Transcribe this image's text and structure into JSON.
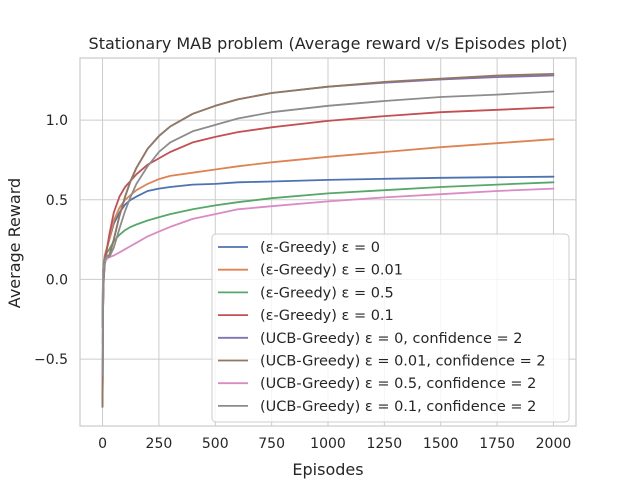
{
  "chart_data": {
    "type": "line",
    "title": "Stationary MAB problem (Average reward v/s Episodes plot)",
    "xlabel": "Episodes",
    "ylabel": "Average Reward",
    "xlim": [
      -100,
      2100
    ],
    "ylim": [
      -0.92,
      1.39
    ],
    "xticks": [
      0,
      250,
      500,
      750,
      1000,
      1250,
      1500,
      1750,
      2000
    ],
    "xtick_labels": [
      "0",
      "250",
      "500",
      "750",
      "1000",
      "1250",
      "1500",
      "1750",
      "2000"
    ],
    "yticks": [
      -0.5,
      0.0,
      0.5,
      1.0
    ],
    "ytick_labels": [
      "−0.5",
      "0.0",
      "0.5",
      "1.0"
    ],
    "grid": true,
    "legend_position": "lower-right",
    "x": [
      0,
      1,
      2,
      5,
      10,
      20,
      30,
      50,
      75,
      100,
      125,
      150,
      200,
      250,
      300,
      400,
      500,
      600,
      750,
      1000,
      1250,
      1500,
      1750,
      2000
    ],
    "series": [
      {
        "name": "(ε-Greedy) ε = 0",
        "color": "#4c72b0",
        "values": [
          -0.3,
          -0.1,
          0.05,
          0.1,
          0.15,
          0.2,
          0.25,
          0.35,
          0.42,
          0.47,
          0.5,
          0.52,
          0.555,
          0.57,
          0.58,
          0.595,
          0.6,
          0.61,
          0.615,
          0.625,
          0.632,
          0.638,
          0.642,
          0.645
        ]
      },
      {
        "name": "(ε-Greedy) ε = 0.01",
        "color": "#dd8452",
        "values": [
          -0.3,
          -0.1,
          0.05,
          0.1,
          0.15,
          0.2,
          0.25,
          0.37,
          0.45,
          0.5,
          0.53,
          0.56,
          0.6,
          0.63,
          0.65,
          0.67,
          0.69,
          0.71,
          0.735,
          0.77,
          0.8,
          0.83,
          0.855,
          0.88
        ]
      },
      {
        "name": "(ε-Greedy) ε = 0.5",
        "color": "#55a868",
        "values": [
          -0.3,
          -0.1,
          0.0,
          0.1,
          0.14,
          0.17,
          0.19,
          0.24,
          0.28,
          0.31,
          0.33,
          0.345,
          0.37,
          0.39,
          0.41,
          0.44,
          0.465,
          0.485,
          0.51,
          0.54,
          0.56,
          0.58,
          0.595,
          0.61
        ]
      },
      {
        "name": "(ε-Greedy) ε = 0.1",
        "color": "#c44e52",
        "values": [
          -0.78,
          -0.5,
          -0.2,
          0.0,
          0.12,
          0.2,
          0.28,
          0.42,
          0.52,
          0.58,
          0.62,
          0.66,
          0.72,
          0.76,
          0.8,
          0.86,
          0.895,
          0.925,
          0.955,
          0.995,
          1.025,
          1.05,
          1.065,
          1.08
        ]
      },
      {
        "name": "(UCB-Greedy) ε = 0, confidence = 2",
        "color": "#8172b3",
        "values": [
          -0.8,
          -0.55,
          -0.2,
          0.0,
          0.1,
          0.15,
          0.15,
          0.25,
          0.4,
          0.52,
          0.62,
          0.7,
          0.82,
          0.9,
          0.96,
          1.04,
          1.09,
          1.13,
          1.17,
          1.21,
          1.235,
          1.255,
          1.27,
          1.28
        ]
      },
      {
        "name": "(UCB-Greedy) ε = 0.01, confidence = 2",
        "color": "#937860",
        "values": [
          -0.8,
          -0.55,
          -0.2,
          0.0,
          0.1,
          0.15,
          0.15,
          0.25,
          0.4,
          0.52,
          0.62,
          0.7,
          0.82,
          0.9,
          0.96,
          1.04,
          1.09,
          1.13,
          1.17,
          1.21,
          1.24,
          1.26,
          1.28,
          1.29
        ]
      },
      {
        "name": "(UCB-Greedy) ε = 0.5, confidence = 2",
        "color": "#da8bc3",
        "values": [
          -0.4,
          -0.2,
          0.0,
          0.08,
          0.11,
          0.13,
          0.14,
          0.15,
          0.17,
          0.19,
          0.21,
          0.23,
          0.27,
          0.3,
          0.33,
          0.38,
          0.41,
          0.44,
          0.46,
          0.49,
          0.515,
          0.535,
          0.555,
          0.57
        ]
      },
      {
        "name": "(UCB-Greedy) ε = 0.1, confidence = 2",
        "color": "#8c8c8c",
        "values": [
          -0.6,
          -0.35,
          -0.1,
          0.05,
          0.12,
          0.15,
          0.14,
          0.2,
          0.32,
          0.43,
          0.52,
          0.6,
          0.71,
          0.8,
          0.86,
          0.93,
          0.97,
          1.01,
          1.05,
          1.09,
          1.12,
          1.145,
          1.16,
          1.18
        ]
      }
    ]
  }
}
